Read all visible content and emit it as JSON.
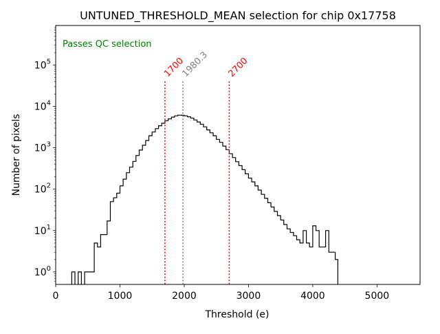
{
  "chart_data": {
    "type": "histogram",
    "title": "UNTUNED_THRESHOLD_MEAN selection for chip 0x17758",
    "xlabel": "Threshold (e)",
    "ylabel": "Number of pixels",
    "xlim": [
      0,
      5670
    ],
    "ylim": [
      0.5,
      900000
    ],
    "yscale": "log",
    "x_ticks": [
      {
        "value": 0,
        "label": "0"
      },
      {
        "value": 1000,
        "label": "1000"
      },
      {
        "value": 2000,
        "label": "2000"
      },
      {
        "value": 3000,
        "label": "3000"
      },
      {
        "value": 4000,
        "label": "4000"
      },
      {
        "value": 5000,
        "label": "5000"
      }
    ],
    "y_ticks": [
      {
        "value": 1,
        "base": "10",
        "exp": "0"
      },
      {
        "value": 10,
        "base": "10",
        "exp": "1"
      },
      {
        "value": 100,
        "base": "10",
        "exp": "2"
      },
      {
        "value": 1000,
        "base": "10",
        "exp": "3"
      },
      {
        "value": 10000,
        "base": "10",
        "exp": "4"
      },
      {
        "value": 100000,
        "base": "10",
        "exp": "5"
      }
    ],
    "annotation": {
      "text": "Passes QC selection",
      "color": "#008000"
    },
    "vlines": [
      {
        "x": 1700,
        "label": "1700",
        "color": "#ff0000",
        "role": "lower-cut"
      },
      {
        "x": 1980.3,
        "label": "1980.3",
        "color": "#808080",
        "role": "mean"
      },
      {
        "x": 2700,
        "label": "2700",
        "color": "#ff0000",
        "role": "upper-cut"
      }
    ],
    "vline_top": 40000,
    "histogram": {
      "color": "#000000",
      "bin_edges": [
        250,
        300,
        350,
        400,
        450,
        500,
        550,
        600,
        650,
        700,
        750,
        800,
        850,
        900,
        950,
        1000,
        1050,
        1100,
        1150,
        1200,
        1250,
        1300,
        1350,
        1400,
        1450,
        1500,
        1550,
        1600,
        1650,
        1700,
        1750,
        1800,
        1850,
        1900,
        1950,
        2000,
        2050,
        2100,
        2150,
        2200,
        2250,
        2300,
        2350,
        2400,
        2450,
        2500,
        2550,
        2600,
        2650,
        2700,
        2750,
        2800,
        2850,
        2900,
        2950,
        3000,
        3050,
        3100,
        3150,
        3200,
        3250,
        3300,
        3350,
        3400,
        3450,
        3500,
        3550,
        3600,
        3650,
        3700,
        3750,
        3800,
        3850,
        3900,
        3950,
        4000,
        4050,
        4100,
        4150,
        4200,
        4250,
        4300,
        4350,
        4390
      ],
      "counts": [
        1,
        0,
        1,
        0,
        1,
        1,
        1,
        5,
        4,
        8,
        8,
        17,
        50,
        62,
        80,
        120,
        175,
        250,
        340,
        470,
        650,
        880,
        1150,
        1500,
        1950,
        2400,
        2900,
        3400,
        3900,
        4500,
        5000,
        5500,
        5900,
        6150,
        6100,
        5900,
        5600,
        5200,
        4700,
        4200,
        3700,
        3200,
        2700,
        2300,
        1950,
        1600,
        1350,
        1100,
        900,
        720,
        580,
        460,
        370,
        295,
        235,
        185,
        150,
        120,
        95,
        75,
        60,
        47,
        37,
        29,
        23,
        18,
        14,
        11,
        9,
        7.5,
        6,
        5,
        10,
        5,
        4,
        13,
        10,
        4,
        4,
        10,
        3,
        3,
        2
      ]
    }
  }
}
